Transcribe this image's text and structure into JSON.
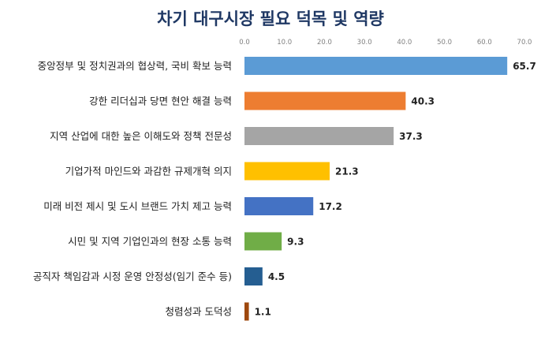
{
  "chart_data": {
    "type": "bar",
    "orientation": "horizontal",
    "title": "차기 대구시장 필요 덕목 및 역량",
    "categories": [
      "중앙정부 및 정치권과의 협상력, 국비 확보 능력",
      "강한 리더십과 당면 현안 해결 능력",
      "지역 산업에 대한 높은 이해도와 정책 전문성",
      "기업가적 마인드와 과감한 규제개혁 의지",
      "미래 비전 제시 및 도시 브랜드 가치 제고 능력",
      "시민 및 지역 기업인과의 현장 소통 능력",
      "공직자 책임감과 시정 운영 안정성(임기 준수 등)",
      "청렴성과 도덕성"
    ],
    "values": [
      65.7,
      40.3,
      37.3,
      21.3,
      17.2,
      9.3,
      4.5,
      1.1
    ],
    "value_labels": [
      "65.7",
      "40.3",
      "37.3",
      "21.3",
      "17.2",
      "9.3",
      "4.5",
      "1.1"
    ],
    "bar_colors": [
      "#5b9bd5",
      "#ed7d31",
      "#a5a5a5",
      "#ffc000",
      "#4472c4",
      "#70ad47",
      "#255e91",
      "#9e480e"
    ],
    "xlim": [
      0,
      70
    ],
    "ticks": [
      0,
      10,
      20,
      30,
      40,
      50,
      60,
      70
    ],
    "tick_labels": [
      "0.0",
      "10.0",
      "20.0",
      "30.0",
      "40.0",
      "50.0",
      "60.0",
      "70.0"
    ],
    "axis_position": "top",
    "grid": false,
    "legend": "none"
  }
}
